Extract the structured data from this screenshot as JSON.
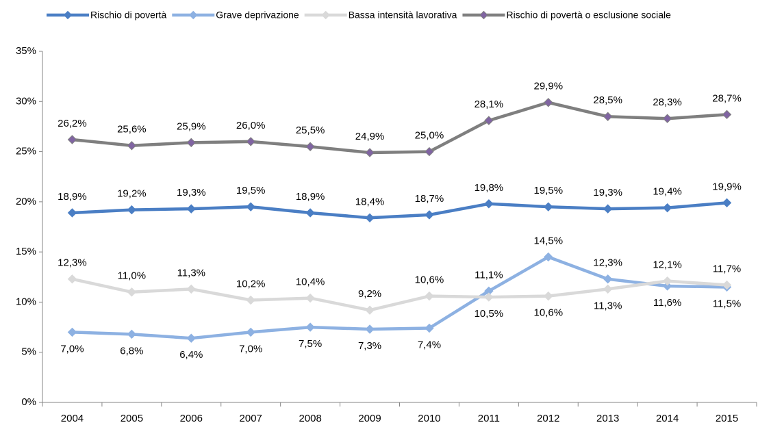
{
  "chart_data": {
    "type": "line",
    "categories": [
      "2004",
      "2005",
      "2006",
      "2007",
      "2008",
      "2009",
      "2010",
      "2011",
      "2012",
      "2013",
      "2014",
      "2015"
    ],
    "ylim": [
      0,
      35
    ],
    "yticks": [
      {
        "value": 0,
        "label": "0%"
      },
      {
        "value": 5,
        "label": "5%"
      },
      {
        "value": 10,
        "label": "10%"
      },
      {
        "value": 15,
        "label": "15%"
      },
      {
        "value": 20,
        "label": "20%"
      },
      {
        "value": 25,
        "label": "25%"
      },
      {
        "value": 30,
        "label": "30%"
      },
      {
        "value": 35,
        "label": "35%"
      }
    ],
    "legend": "top",
    "series": [
      {
        "name": "Rischio di povertà",
        "color": "#4a7ec4",
        "marker_color": "#4a7ec4",
        "values": [
          18.9,
          19.2,
          19.3,
          19.5,
          18.9,
          18.4,
          18.7,
          19.8,
          19.5,
          19.3,
          19.4,
          19.9
        ],
        "value_labels": [
          "18,9%",
          "19,2%",
          "19,3%",
          "19,5%",
          "18,9%",
          "18,4%",
          "18,7%",
          "19,8%",
          "19,5%",
          "19,3%",
          "19,4%",
          "19,9%"
        ]
      },
      {
        "name": "Grave deprivazione",
        "color": "#8db1e2",
        "marker_color": "#8db1e2",
        "values": [
          7.0,
          6.8,
          6.4,
          7.0,
          7.5,
          7.3,
          7.4,
          11.1,
          14.5,
          12.3,
          11.6,
          11.5
        ],
        "value_labels": [
          "7,0%",
          "6,8%",
          "6,4%",
          "7,0%",
          "7,5%",
          "7,3%",
          "7,4%",
          "11,1%",
          "14,5%",
          "12,3%",
          "11,6%",
          "11,5%"
        ]
      },
      {
        "name": "Bassa intensità lavorativa",
        "color": "#d9d9d9",
        "marker_color": "#d9d9d9",
        "values": [
          12.3,
          11.0,
          11.3,
          10.2,
          10.4,
          9.2,
          10.6,
          10.5,
          10.6,
          11.3,
          12.1,
          11.7
        ],
        "value_labels": [
          "12,3%",
          "11,0%",
          "11,3%",
          "10,2%",
          "10,4%",
          "9,2%",
          "10,6%",
          "10,5%",
          "10,6%",
          "11,3%",
          "12,1%",
          "11,7%"
        ]
      },
      {
        "name": "Rischio di povertà o esclusione sociale",
        "color": "#7f7f7f",
        "marker_color": "#8064a2",
        "values": [
          26.2,
          25.6,
          25.9,
          26.0,
          25.5,
          24.9,
          25.0,
          28.1,
          29.9,
          28.5,
          28.3,
          28.7
        ],
        "value_labels": [
          "26,2%",
          "25,6%",
          "25,9%",
          "26,0%",
          "25,5%",
          "24,9%",
          "25,0%",
          "28,1%",
          "29,9%",
          "28,5%",
          "28,3%",
          "28,7%"
        ]
      }
    ]
  }
}
